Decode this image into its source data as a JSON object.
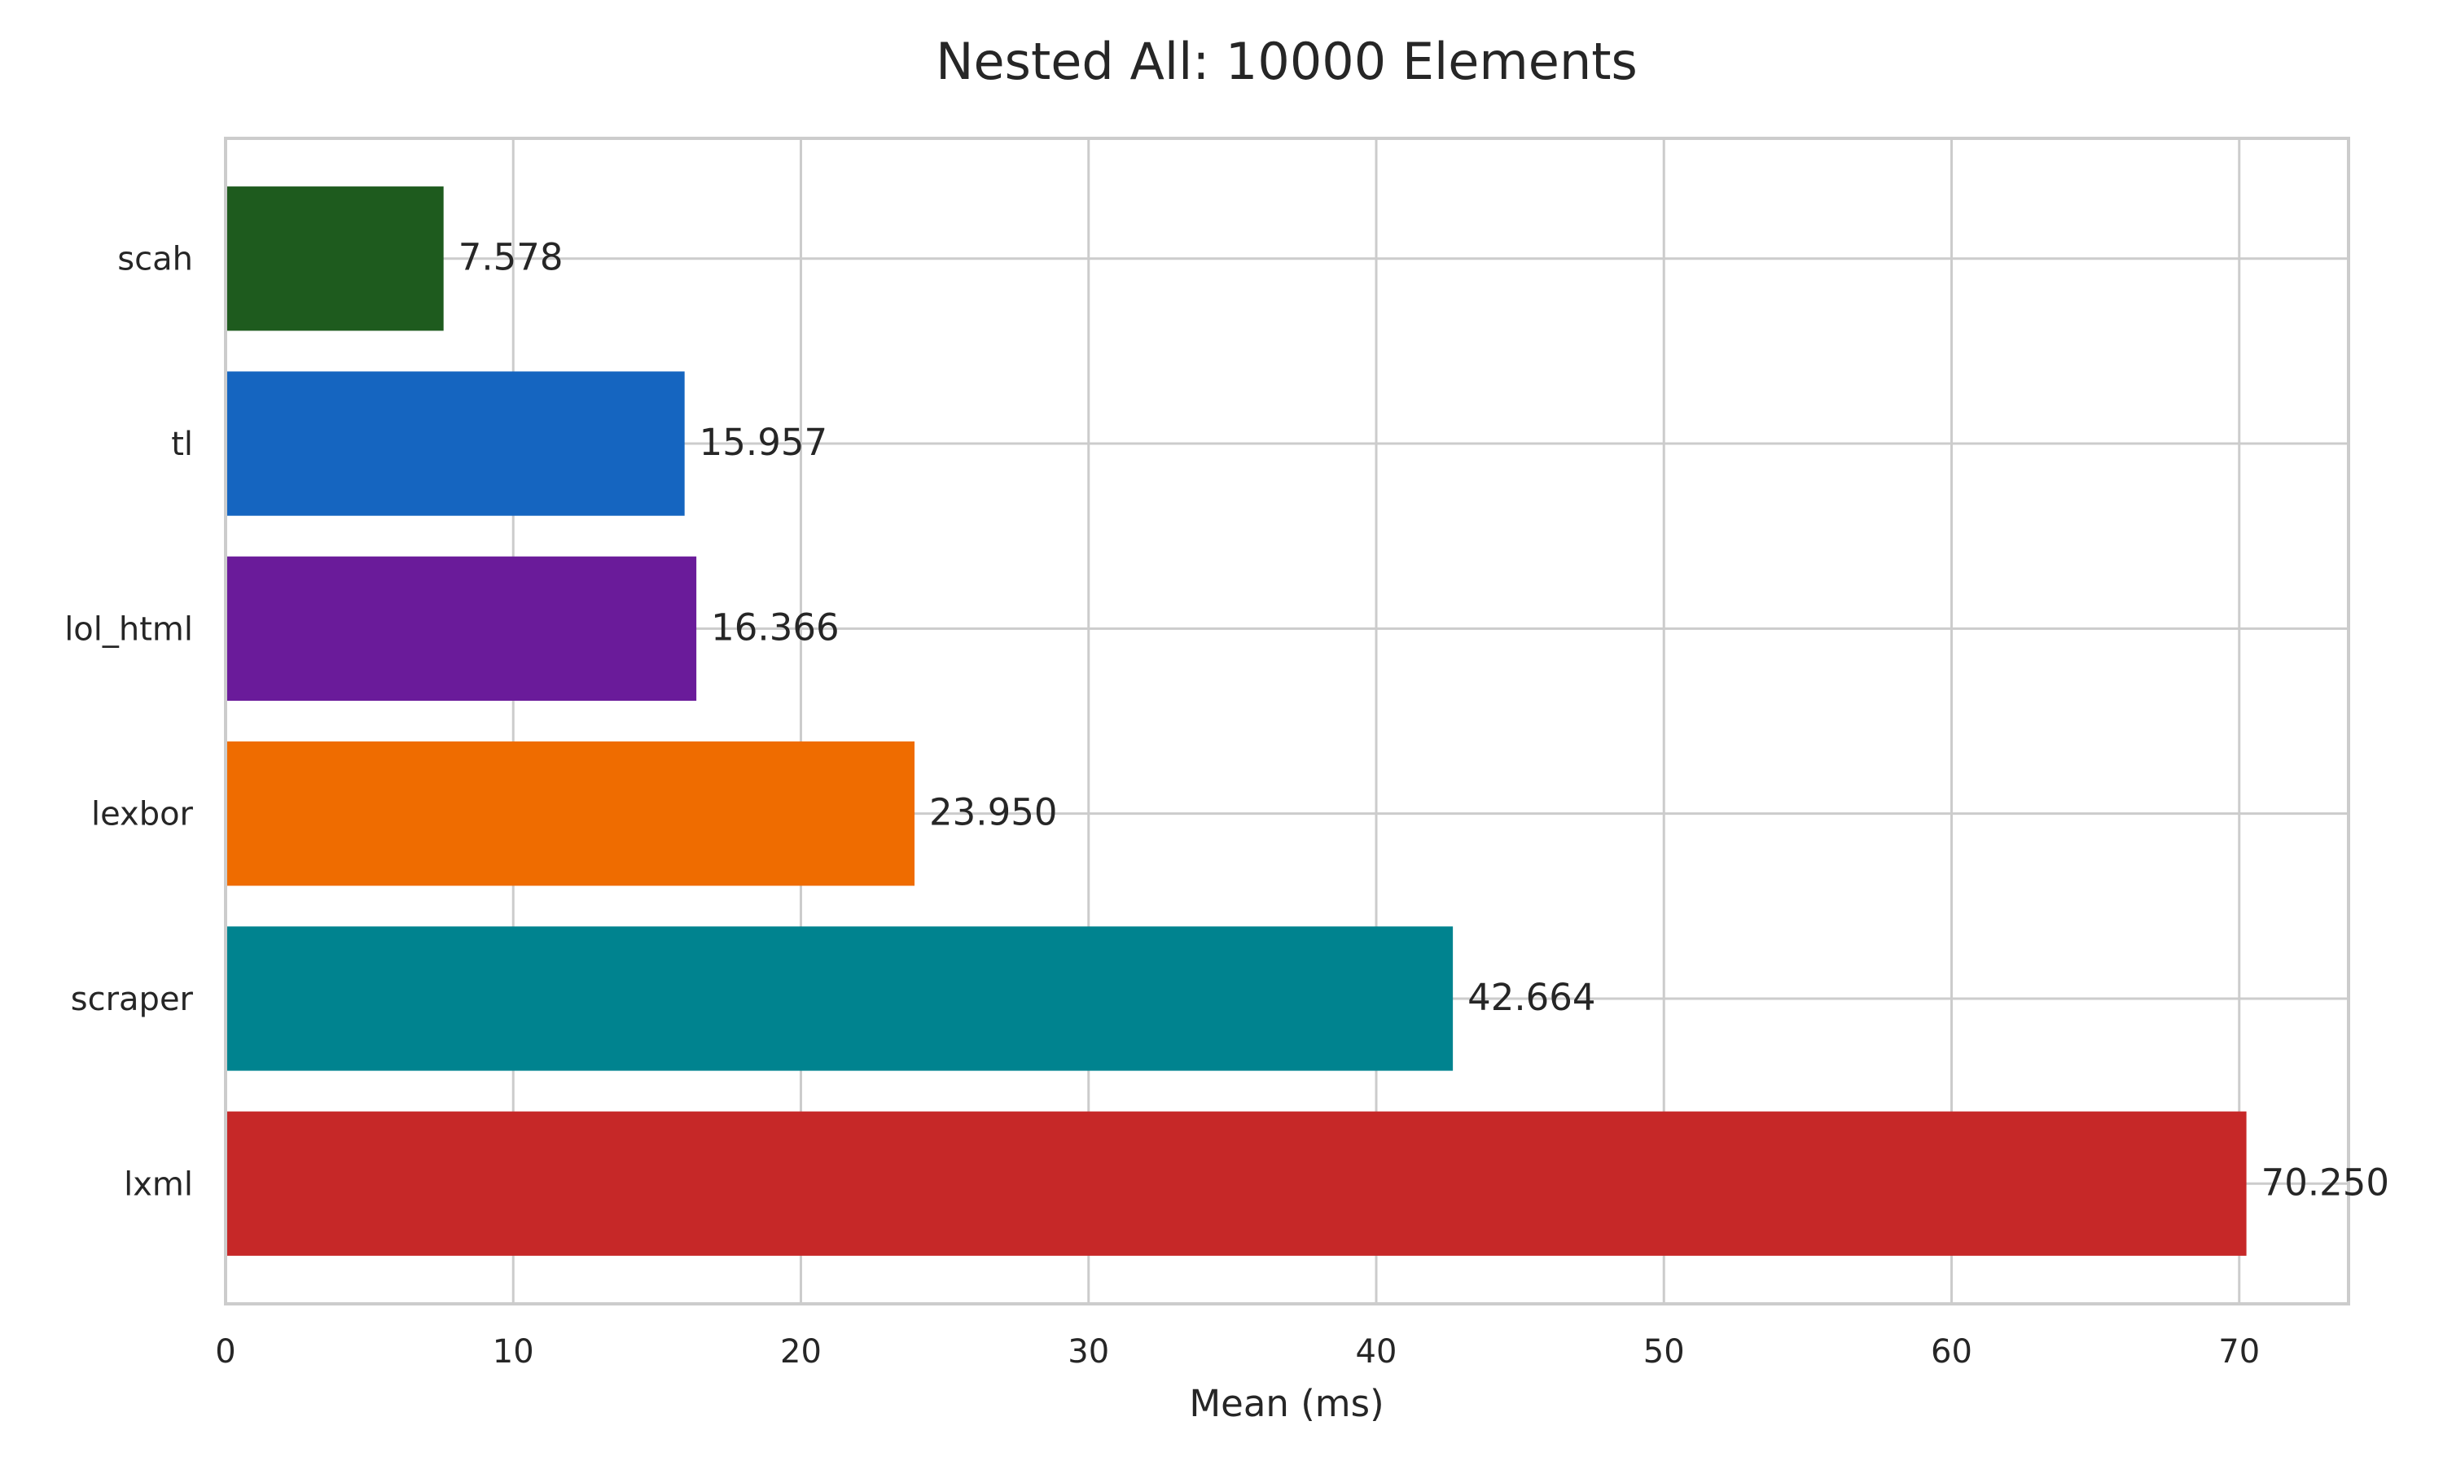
{
  "chart_data": {
    "type": "bar",
    "orientation": "horizontal",
    "title": "Nested All: 10000 Elements",
    "xlabel": "Mean (ms)",
    "ylabel": "",
    "xlim": [
      0,
      73.8
    ],
    "xticks": [
      0,
      10,
      20,
      30,
      40,
      50,
      60,
      70
    ],
    "grid": true,
    "categories": [
      "scah",
      "tl",
      "lol_html",
      "lexbor",
      "scraper",
      "lxml"
    ],
    "values": [
      7.578,
      15.957,
      16.366,
      23.95,
      42.664,
      70.25
    ],
    "value_labels": [
      "7.578",
      "15.957",
      "16.366",
      "23.950",
      "42.664",
      "70.250"
    ],
    "colors": [
      "#1e5b1e",
      "#1565c0",
      "#6a1b9a",
      "#ef6c00",
      "#00838f",
      "#c62828"
    ]
  },
  "style": {
    "grid_color": "#cccccc",
    "spine_color": "#cccccc",
    "text_color": "#262626"
  }
}
